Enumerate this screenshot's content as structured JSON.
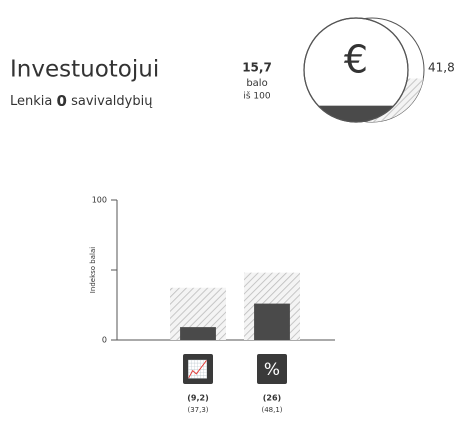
{
  "header": {
    "title": "Investuotojui",
    "subtitle_prefix": "Lenkia",
    "rank": "0",
    "subtitle_suffix": "savivaldybių"
  },
  "score": {
    "value": 15.7,
    "value_label": "15,7",
    "unit": "balo",
    "scale": "iš 100",
    "max": 41.8,
    "max_label": "41,8",
    "icon": "€"
  },
  "chart_data": {
    "type": "bar",
    "ylabel": "Indekso balai",
    "categories": [
      null,
      null
    ],
    "icons": [
      "📈",
      "%"
    ],
    "series": [
      {
        "color": "hatch",
        "values": [
          37.3,
          48.1
        ],
        "value_labels": [
          "(37,3)",
          "(48,1)"
        ]
      },
      {
        "color": "#4a4a4a",
        "values": [
          9.2,
          26
        ],
        "value_labels": [
          "(9,2)",
          "(26)"
        ]
      }
    ],
    "ylim": [
      0,
      100
    ],
    "yticks": [
      0,
      100
    ],
    "minor_yticks": [
      50
    ]
  }
}
